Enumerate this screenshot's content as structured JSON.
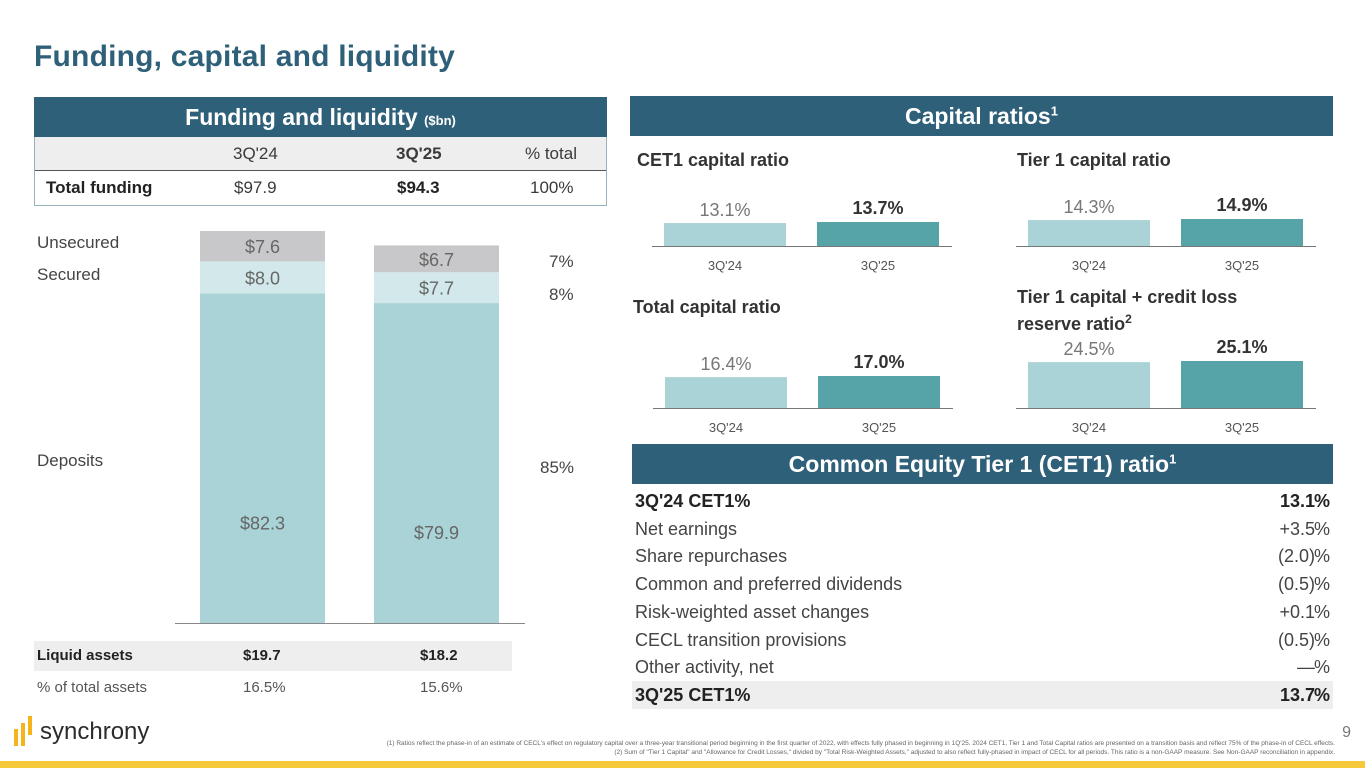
{
  "page_title": "Funding, capital and liquidity",
  "page_number": "9",
  "colors": {
    "header_bg": "#2f6079",
    "bar_prior": "#a9d3d6",
    "bar_current": "#56a3a8",
    "deposits": "#a9d3d6",
    "secured": "#d2e8ea",
    "unsecured": "#c8c8ca",
    "footer_bar": "#f6c83c"
  },
  "funding": {
    "header": "Funding and liquidity",
    "unit": "($bn)",
    "table": {
      "headers": [
        "3Q'24",
        "3Q'25",
        "% total"
      ],
      "row_label": "Total funding",
      "values": [
        "$97.9",
        "$94.3",
        "100%"
      ]
    },
    "segment_labels": {
      "unsecured": "Unsecured",
      "secured": "Secured",
      "deposits": "Deposits"
    },
    "segment_pct": {
      "unsecured": "7%",
      "secured": "8%",
      "deposits": "85%"
    },
    "liquid_assets": {
      "label": "Liquid assets",
      "values": [
        "$19.7",
        "$18.2"
      ]
    },
    "pct_total_assets": {
      "label": "% of total assets",
      "values": [
        "16.5%",
        "15.6%"
      ]
    }
  },
  "capital": {
    "header": "Capital ratios",
    "header_sup": "1"
  },
  "cet1": {
    "header": "Common Equity Tier 1 (CET1) ratio",
    "header_sup": "1",
    "rows": [
      {
        "label": "3Q'24 CET1%",
        "value": "13.1",
        "unit": "%",
        "bold": true,
        "shade": false
      },
      {
        "label": "Net earnings",
        "value": "+3.5",
        "unit": "%",
        "bold": false,
        "shade": false
      },
      {
        "label": "Share repurchases",
        "value": "(2.0)",
        "unit": "%",
        "bold": false,
        "shade": false
      },
      {
        "label": "Common and preferred dividends",
        "value": "(0.5)",
        "unit": "%",
        "bold": false,
        "shade": false
      },
      {
        "label": "Risk-weighted asset changes",
        "value": "+0.1",
        "unit": "%",
        "bold": false,
        "shade": false
      },
      {
        "label": "CECL transition provisions",
        "value": "(0.5)",
        "unit": "%",
        "bold": false,
        "shade": false
      },
      {
        "label": "Other activity, net",
        "value": "—",
        "unit": "%",
        "bold": false,
        "shade": false
      },
      {
        "label": "3Q'25 CET1%",
        "value": "13.7",
        "unit": "%",
        "bold": true,
        "shade": true
      }
    ]
  },
  "logo_text": "synchrony",
  "footnotes": [
    "(1) Ratios reflect the phase-in of an estimate of CECL's effect on regulatory capital over a three-year transitional period beginning in the first quarter of 2022, with effects fully phased in beginning in 1Q'25. 2024 CET1, Tier 1 and Total Capital ratios are presented on a transition basis and reflect 75% of the phase-in of CECL effects.",
    "(2) Sum of \"Tier 1 Capital\" and \"Allowance for Credit Losses,\" divided by \"Total Risk-Weighted Assets,\" adjusted to also reflect fully-phased in impact of CECL for all periods. This ratio is a non-GAAP measure. See Non-GAAP reconciliation in appendix."
  ],
  "chart_data": [
    {
      "type": "bar",
      "stacked": true,
      "title": "Funding and liquidity ($bn)",
      "categories": [
        "3Q'24",
        "3Q'25"
      ],
      "series": [
        {
          "name": "Deposits",
          "values": [
            82.3,
            79.9
          ],
          "labels": [
            "$82.3",
            "$79.9"
          ]
        },
        {
          "name": "Secured",
          "values": [
            8.0,
            7.7
          ],
          "labels": [
            "$8.0",
            "$7.7"
          ]
        },
        {
          "name": "Unsecured",
          "values": [
            7.6,
            6.7
          ],
          "labels": [
            "$7.6",
            "$6.7"
          ]
        }
      ],
      "totals": [
        97.9,
        94.3
      ],
      "ylim": [
        0,
        97.9
      ],
      "grid": false
    },
    {
      "type": "bar",
      "title": "CET1 capital ratio",
      "title_sup": "",
      "categories": [
        "3Q'24",
        "3Q'25"
      ],
      "values": [
        13.1,
        13.7
      ],
      "labels": [
        "13.1%",
        "13.7%"
      ],
      "grid": false
    },
    {
      "type": "bar",
      "title": "Tier 1 capital ratio",
      "title_sup": "",
      "categories": [
        "3Q'24",
        "3Q'25"
      ],
      "values": [
        14.3,
        14.9
      ],
      "labels": [
        "14.3%",
        "14.9%"
      ],
      "grid": false
    },
    {
      "type": "bar",
      "title": "Total capital ratio",
      "title_sup": "",
      "categories": [
        "3Q'24",
        "3Q'25"
      ],
      "values": [
        16.4,
        17.0
      ],
      "labels": [
        "16.4%",
        "17.0%"
      ],
      "grid": false
    },
    {
      "type": "bar",
      "title": "Tier 1 capital + credit loss reserve ratio",
      "title_sup": "2",
      "categories": [
        "3Q'24",
        "3Q'25"
      ],
      "values": [
        24.5,
        25.1
      ],
      "labels": [
        "24.5%",
        "25.1%"
      ],
      "grid": false
    }
  ]
}
